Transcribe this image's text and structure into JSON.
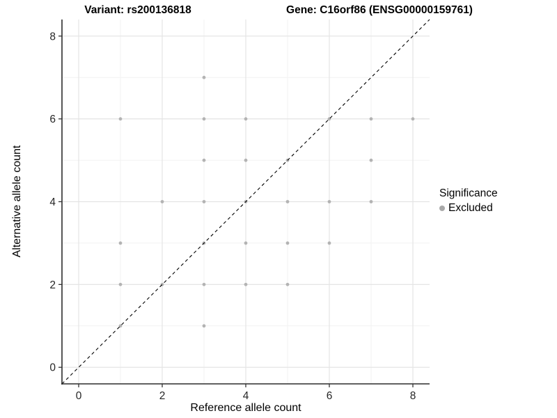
{
  "header": {
    "variant_title": "Variant: rs200136818",
    "gene_title": "Gene: C16orf86 (ENSG00000159761)"
  },
  "legend": {
    "title": "Significance",
    "items": [
      {
        "label": "Excluded",
        "color": "#a9a9a9"
      }
    ]
  },
  "colors": {
    "background": "#ffffff",
    "axis_line": "#2b2b2b",
    "tick_mark": "#333333",
    "tick_text": "#262626",
    "grid_major": "#e4e4e4",
    "grid_minor": "#f2f2f2",
    "point": "#b3b3b3",
    "dashed_line": "#000000"
  },
  "chart_data": {
    "type": "scatter",
    "title": "Variant: rs200136818 / Gene: C16orf86 (ENSG00000159761)",
    "xlabel": "Reference allele count",
    "ylabel": "Alternative allele count",
    "xlim": [
      -0.4,
      8.4
    ],
    "ylim": [
      -0.4,
      8.4
    ],
    "x_ticks": [
      0,
      2,
      4,
      6,
      8
    ],
    "y_ticks": [
      0,
      2,
      4,
      6,
      8
    ],
    "x_minor": [
      1,
      3,
      5,
      7
    ],
    "y_minor": [
      1,
      3,
      5,
      7
    ],
    "grid": true,
    "legend_position": "right",
    "series": [
      {
        "name": "Excluded",
        "color": "#b3b3b3",
        "points": [
          [
            3,
            7
          ],
          [
            1,
            6
          ],
          [
            3,
            6
          ],
          [
            4,
            6
          ],
          [
            6,
            6
          ],
          [
            7,
            6
          ],
          [
            8,
            6
          ],
          [
            3,
            5
          ],
          [
            4,
            5
          ],
          [
            5,
            5
          ],
          [
            7,
            5
          ],
          [
            2,
            4
          ],
          [
            3,
            4
          ],
          [
            4,
            4
          ],
          [
            5,
            4
          ],
          [
            6,
            4
          ],
          [
            7,
            4
          ],
          [
            1,
            3
          ],
          [
            3,
            3
          ],
          [
            4,
            3
          ],
          [
            5,
            3
          ],
          [
            6,
            3
          ],
          [
            1,
            2
          ],
          [
            2,
            2
          ],
          [
            3,
            2
          ],
          [
            4,
            2
          ],
          [
            5,
            2
          ],
          [
            1,
            1
          ],
          [
            3,
            1
          ]
        ]
      }
    ],
    "reference_line": {
      "slope": 1,
      "intercept": 0,
      "style": "dashed",
      "color": "#000000"
    }
  }
}
